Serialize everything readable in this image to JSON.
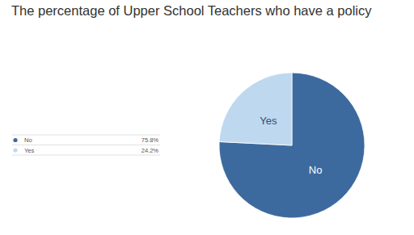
{
  "chart_data": {
    "type": "pie",
    "title": "The percentage of Upper School Teachers who have a policy",
    "categories": [
      "No",
      "Yes"
    ],
    "values": [
      75.8,
      24.2
    ],
    "value_labels": [
      "75.8%",
      "24.2%"
    ],
    "colors": [
      "#3d6a9e",
      "#bed8ef"
    ],
    "legend": "left"
  }
}
